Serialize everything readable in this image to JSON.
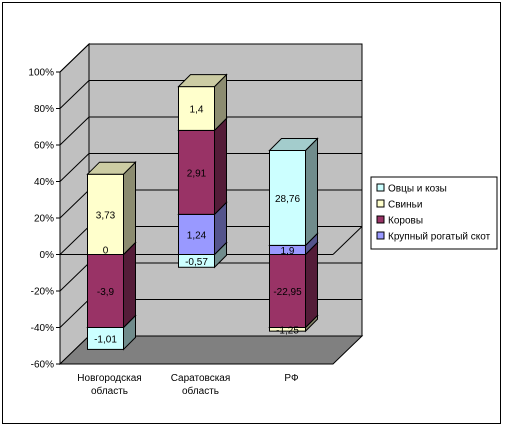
{
  "chart_data": {
    "type": "bar",
    "stacked": "percent",
    "three_d": true,
    "categories": [
      "Новгородская область",
      "Саратовская область",
      "РФ"
    ],
    "category_lines": [
      [
        "Новгородская",
        "область"
      ],
      [
        "Саратовская",
        "область"
      ],
      [
        "РФ"
      ]
    ],
    "series": [
      {
        "name": "Крупный рогатый скот",
        "labels": [
          "0",
          "1,24",
          "1,9"
        ],
        "percent_bottom": [
          0,
          0,
          0
        ],
        "percent_top": [
          0,
          22,
          5
        ]
      },
      {
        "name": "Коровы",
        "labels": [
          "-3,9",
          "2,91",
          "-22,95"
        ],
        "percent_bottom": [
          0,
          22,
          0
        ],
        "percent_top": [
          -40,
          68,
          -40
        ]
      },
      {
        "name": "Свиньи",
        "labels": [
          "3,73",
          "1,4",
          "-1,25"
        ],
        "percent_bottom": [
          0,
          68,
          -40
        ],
        "percent_top": [
          44,
          92,
          -42
        ]
      },
      {
        "name": "Овцы и козы",
        "labels": [
          "-1,01",
          "-0,57",
          "28,76"
        ],
        "percent_bottom": [
          -40,
          0,
          5
        ],
        "percent_top": [
          -52,
          -7,
          57
        ]
      }
    ],
    "y_ticks": [
      "100%",
      "80%",
      "60%",
      "40%",
      "20%",
      "0%",
      "-20%",
      "-40%",
      "-60%"
    ],
    "ylim": [
      -60,
      100
    ],
    "grid": true,
    "legend_position": "right",
    "colors": [
      "#9999ff",
      "#993366",
      "#ffffcc",
      "#ccffff"
    ],
    "wall_color": "#c0c0c0",
    "floor_color": "#808080"
  }
}
